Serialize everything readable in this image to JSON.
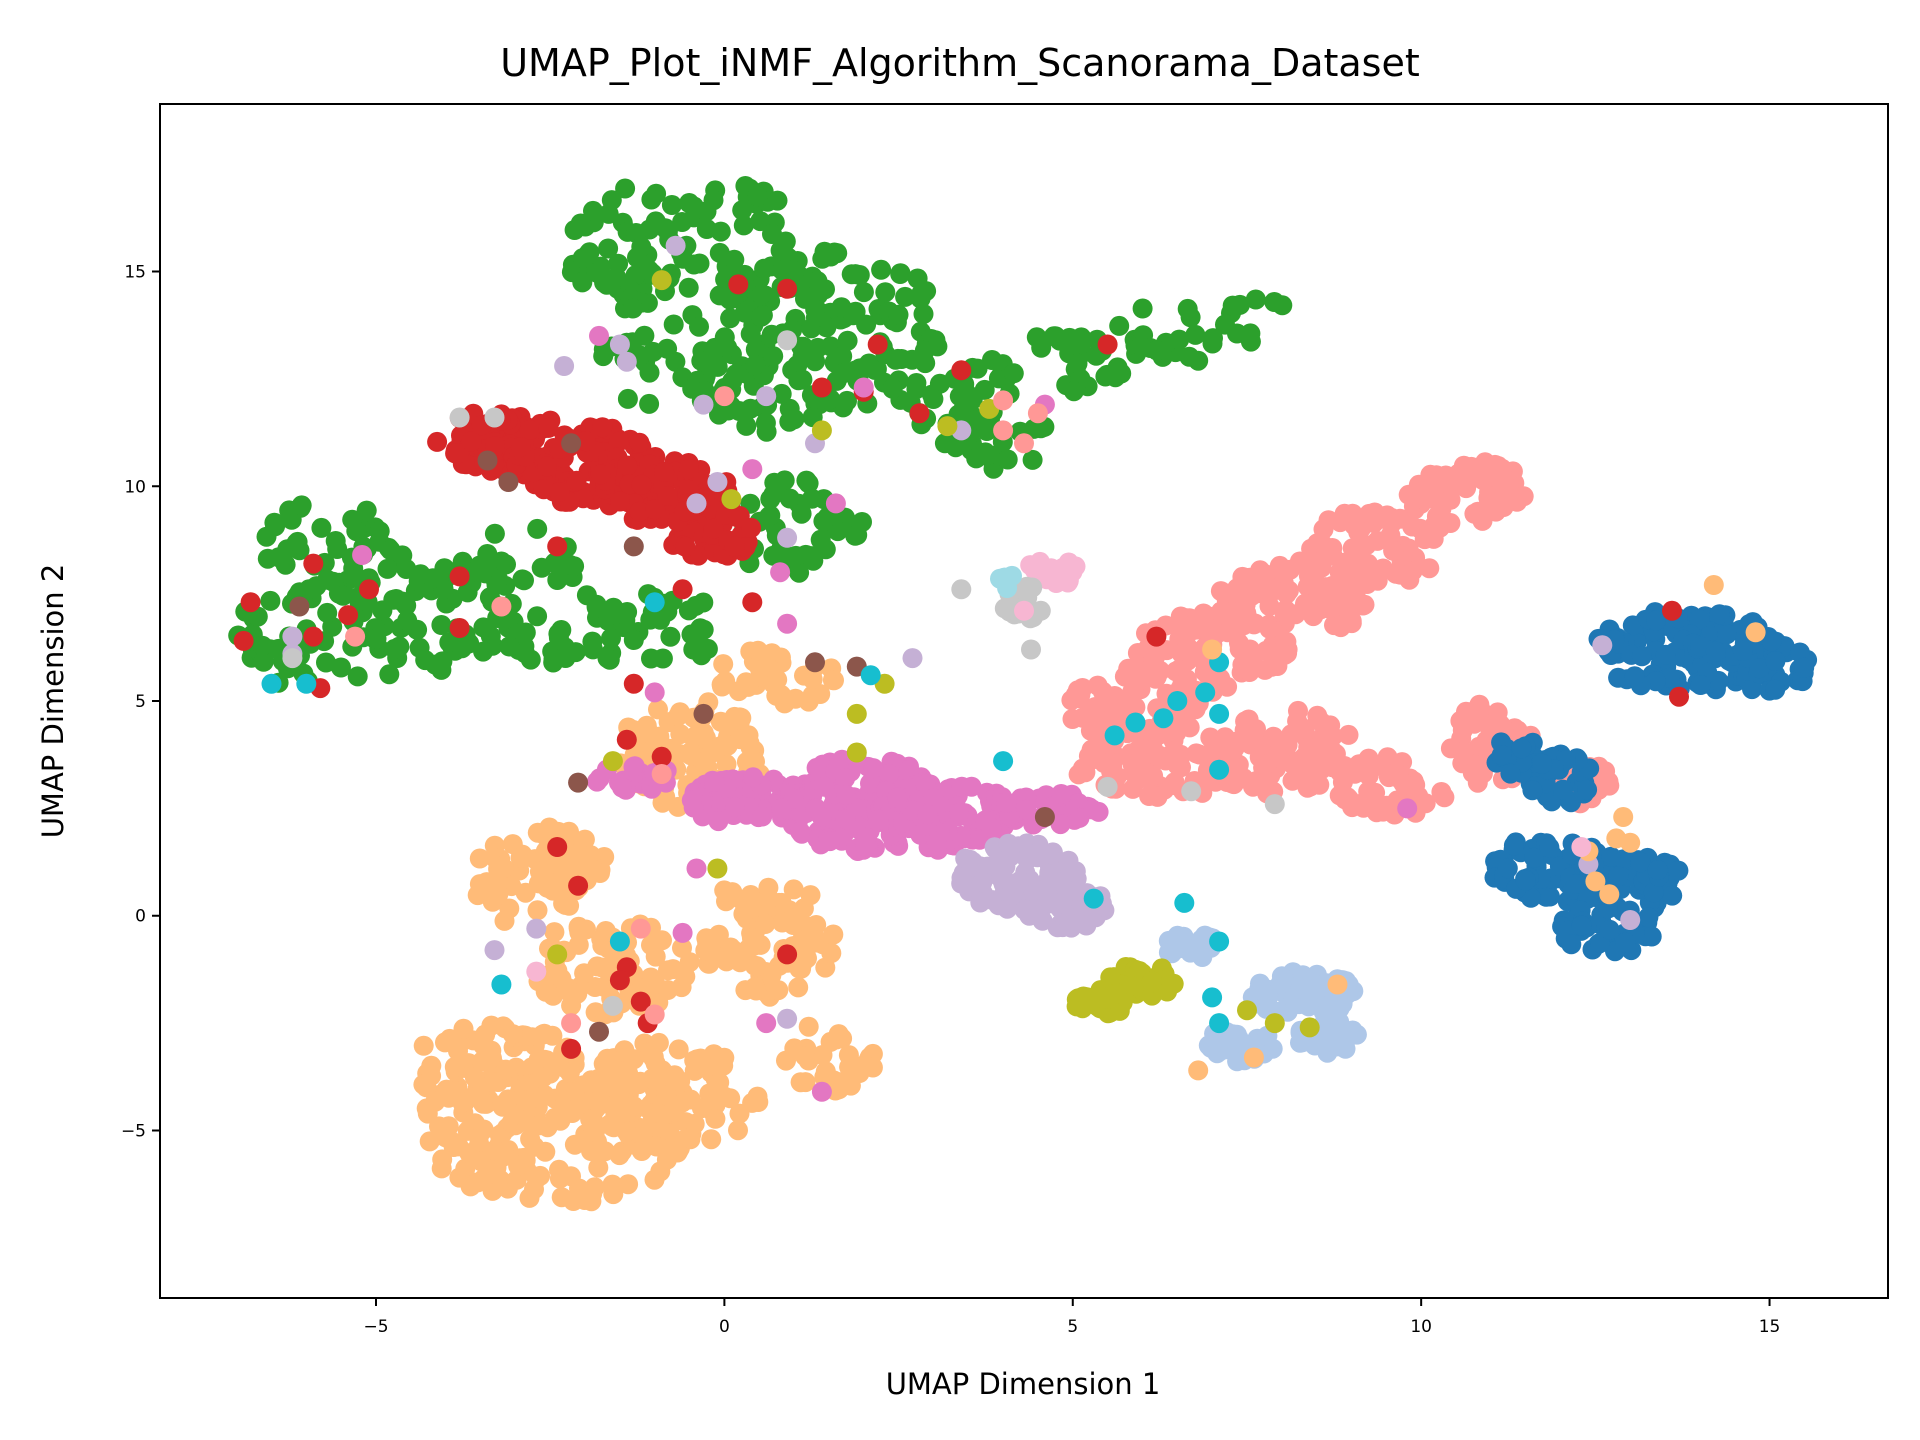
{
  "chart_data": {
    "type": "scatter",
    "title": "UMAP_Plot_iNMF_Algorithm_Scanorama_Dataset",
    "xlabel": "UMAP Dimension 1",
    "ylabel": "UMAP Dimension 2",
    "xlim": [
      -8.1,
      16.7
    ],
    "ylim": [
      -8.9,
      18.9
    ],
    "xticks": [
      -5,
      0,
      5,
      10,
      15
    ],
    "yticks": [
      -5,
      0,
      5,
      10,
      15
    ],
    "xtick_labels": [
      "−5",
      "0",
      "5",
      "10",
      "15"
    ],
    "ytick_labels": [
      "−5",
      "0",
      "5",
      "10",
      "15"
    ],
    "grid": false,
    "legend": false,
    "clusters": [
      {
        "color": "#2ca02c",
        "blobs": [
          [
            -0.5,
            15.5,
            1.8,
            1.7
          ],
          [
            1.5,
            14,
            1.6,
            1.6
          ],
          [
            -0.8,
            12.8,
            1.1,
            1.0
          ],
          [
            0.8,
            12.2,
            1.2,
            1.1
          ],
          [
            3.0,
            12.5,
            1.2,
            1.0
          ],
          [
            3.8,
            11.3,
            1.0,
            0.9
          ],
          [
            5.0,
            12.9,
            1.0,
            0.7
          ],
          [
            6.6,
            13.6,
            1.1,
            0.7
          ],
          [
            7.6,
            14.3,
            0.5,
            0.3
          ],
          [
            1.0,
            9.0,
            1.0,
            1.2
          ],
          [
            -5.6,
            8.6,
            1.0,
            1.1
          ],
          [
            -5.7,
            6.6,
            1.3,
            1.4
          ],
          [
            -4.2,
            7.1,
            1.2,
            1.4
          ],
          [
            -3.0,
            8.2,
            0.9,
            0.9
          ],
          [
            -2.2,
            6.7,
            1.1,
            0.9
          ],
          [
            -0.8,
            6.8,
            0.9,
            0.9
          ]
        ],
        "n": 700
      },
      {
        "color": "#d62728",
        "blobs": [
          [
            -3.2,
            11.0,
            1.0,
            0.8
          ],
          [
            -2.0,
            10.5,
            1.1,
            0.9
          ],
          [
            -0.9,
            9.9,
            1.0,
            0.8
          ],
          [
            -0.2,
            9.0,
            0.6,
            0.8
          ]
        ],
        "n": 340
      },
      {
        "color": "#ffbb78",
        "blobs": [
          [
            -2.4,
            -5.0,
            2.0,
            1.7
          ],
          [
            -3.3,
            -3.5,
            1.2,
            1.0
          ],
          [
            -0.8,
            -4.2,
            1.3,
            1.3
          ],
          [
            -2.6,
            0.8,
            1.0,
            1.3
          ],
          [
            -1.6,
            -1.2,
            1.2,
            1.1
          ],
          [
            -0.5,
            3.7,
            1.1,
            1.4
          ],
          [
            0.7,
            5.5,
            0.9,
            0.7
          ],
          [
            0.6,
            -0.5,
            1.0,
            1.4
          ],
          [
            1.5,
            -3.3,
            0.7,
            0.8
          ]
        ],
        "n": 750
      },
      {
        "color": "#e377c2",
        "blobs": [
          [
            1.9,
            2.6,
            1.3,
            1.1
          ],
          [
            3.2,
            2.3,
            1.0,
            0.8
          ],
          [
            0.3,
            2.7,
            0.8,
            0.6
          ],
          [
            -1.3,
            3.2,
            0.6,
            0.3
          ],
          [
            4.6,
            2.5,
            0.8,
            0.4
          ]
        ],
        "n": 360
      },
      {
        "color": "#c5b0d5",
        "blobs": [
          [
            4.2,
            0.9,
            0.9,
            0.8
          ],
          [
            4.9,
            0.2,
            0.6,
            0.5
          ]
        ],
        "n": 140
      },
      {
        "color": "#ff9896",
        "blobs": [
          [
            10.7,
            9.8,
            0.9,
            0.8
          ],
          [
            9.4,
            8.6,
            1.0,
            0.9
          ],
          [
            8.2,
            7.4,
            1.1,
            0.9
          ],
          [
            7.0,
            6.2,
            1.1,
            1.0
          ],
          [
            5.9,
            4.9,
            1.0,
            0.9
          ],
          [
            6.2,
            3.5,
            1.2,
            0.8
          ],
          [
            8.0,
            3.8,
            1.1,
            1.0
          ],
          [
            9.5,
            3.0,
            0.9,
            0.7
          ],
          [
            11.0,
            4.0,
            0.6,
            1.0
          ],
          [
            12.2,
            3.1,
            0.8,
            0.5
          ]
        ],
        "n": 640
      },
      {
        "color": "#1f77b4",
        "blobs": [
          [
            13.8,
            6.2,
            1.3,
            1.0
          ],
          [
            15.0,
            5.8,
            0.6,
            0.6
          ],
          [
            12.0,
            3.2,
            0.5,
            0.6
          ],
          [
            12.0,
            1.1,
            1.0,
            0.8
          ],
          [
            13.0,
            0.8,
            0.8,
            0.7
          ],
          [
            12.7,
            -0.3,
            0.7,
            0.6
          ],
          [
            11.5,
            3.7,
            0.5,
            0.5
          ]
        ],
        "n": 380
      },
      {
        "color": "#aec7e8",
        "blobs": [
          [
            8.3,
            -1.8,
            0.8,
            0.5
          ],
          [
            7.4,
            -3.0,
            0.5,
            0.4
          ],
          [
            8.6,
            -2.8,
            0.5,
            0.4
          ],
          [
            6.7,
            -0.7,
            0.4,
            0.3
          ]
        ],
        "n": 150
      },
      {
        "color": "#bcbd22",
        "blobs": [
          [
            6.0,
            -1.5,
            0.5,
            0.4
          ],
          [
            5.4,
            -2.0,
            0.4,
            0.3
          ]
        ],
        "n": 70
      },
      {
        "color": "#f7b6d2",
        "blobs": [
          [
            4.7,
            8.0,
            0.4,
            0.3
          ]
        ],
        "n": 22
      },
      {
        "color": "#c7c7c7",
        "blobs": [
          [
            4.3,
            7.2,
            0.3,
            0.5
          ]
        ],
        "n": 18
      },
      {
        "color": "#9edae5",
        "blobs": [
          [
            4.1,
            7.8,
            0.2,
            0.2
          ]
        ],
        "n": 6
      }
    ],
    "outliers": [
      {
        "color": "#d62728",
        "points": [
          [
            0.2,
            14.7
          ],
          [
            0.9,
            14.6
          ],
          [
            2.2,
            13.3
          ],
          [
            5.5,
            13.3
          ],
          [
            3.4,
            12.7
          ],
          [
            2.0,
            12.2
          ],
          [
            2.8,
            11.7
          ],
          [
            1.4,
            12.3
          ],
          [
            -6.9,
            6.4
          ],
          [
            -6.8,
            7.3
          ],
          [
            -5.9,
            8.2
          ],
          [
            -5.9,
            6.5
          ],
          [
            -5.8,
            5.3
          ],
          [
            -5.4,
            7.0
          ],
          [
            -5.1,
            7.6
          ],
          [
            -3.8,
            7.9
          ],
          [
            -3.8,
            6.7
          ],
          [
            -2.4,
            8.6
          ],
          [
            -1.3,
            5.4
          ],
          [
            -1.4,
            4.1
          ],
          [
            -0.9,
            3.7
          ],
          [
            -2.4,
            1.6
          ],
          [
            -2.1,
            0.7
          ],
          [
            -1.4,
            -1.2
          ],
          [
            -1.5,
            -1.5
          ],
          [
            -1.2,
            -2.0
          ],
          [
            -1.1,
            -2.5
          ],
          [
            -2.2,
            -3.1
          ],
          [
            0.9,
            -0.9
          ],
          [
            6.2,
            6.5
          ],
          [
            13.6,
            7.1
          ],
          [
            13.7,
            5.1
          ],
          [
            -0.6,
            7.6
          ],
          [
            0.4,
            7.3
          ]
        ]
      },
      {
        "color": "#8c564b",
        "points": [
          [
            -3.4,
            10.6
          ],
          [
            -3.1,
            10.1
          ],
          [
            -2.2,
            11.0
          ],
          [
            -1.3,
            8.6
          ],
          [
            -6.1,
            7.2
          ],
          [
            -1.8,
            -2.7
          ],
          [
            1.3,
            5.9
          ],
          [
            1.9,
            5.8
          ],
          [
            4.6,
            2.3
          ],
          [
            -2.1,
            3.1
          ],
          [
            -0.3,
            4.7
          ]
        ]
      },
      {
        "color": "#e377c2",
        "points": [
          [
            -1.8,
            13.5
          ],
          [
            2.0,
            12.3
          ],
          [
            4.6,
            11.9
          ],
          [
            0.4,
            10.4
          ],
          [
            -5.2,
            8.4
          ],
          [
            0.8,
            8.0
          ],
          [
            1.6,
            9.6
          ],
          [
            -0.6,
            -0.4
          ],
          [
            1.4,
            -4.1
          ],
          [
            0.6,
            -2.5
          ],
          [
            -0.4,
            1.1
          ],
          [
            9.8,
            2.5
          ],
          [
            0.9,
            6.8
          ],
          [
            -1.0,
            5.2
          ]
        ]
      },
      {
        "color": "#c5b0d5",
        "points": [
          [
            -0.7,
            15.6
          ],
          [
            -1.5,
            13.3
          ],
          [
            -1.4,
            12.9
          ],
          [
            -2.3,
            12.8
          ],
          [
            -0.3,
            11.9
          ],
          [
            0.6,
            12.1
          ],
          [
            1.3,
            11.0
          ],
          [
            3.4,
            11.3
          ],
          [
            -0.1,
            10.1
          ],
          [
            -0.4,
            9.6
          ],
          [
            0.9,
            8.8
          ],
          [
            -6.2,
            6.5
          ],
          [
            -6.2,
            6.1
          ],
          [
            -2.7,
            -0.3
          ],
          [
            -3.3,
            -0.8
          ],
          [
            2.7,
            6.0
          ],
          [
            12.6,
            6.3
          ],
          [
            12.4,
            1.2
          ],
          [
            13.0,
            -0.1
          ],
          [
            0.9,
            -2.4
          ]
        ]
      },
      {
        "color": "#bcbd22",
        "points": [
          [
            -0.9,
            14.8
          ],
          [
            1.4,
            11.3
          ],
          [
            3.2,
            11.4
          ],
          [
            3.8,
            11.8
          ],
          [
            0.1,
            9.7
          ],
          [
            -1.6,
            3.6
          ],
          [
            1.9,
            4.7
          ],
          [
            1.9,
            3.8
          ],
          [
            -0.1,
            1.1
          ],
          [
            -2.4,
            -0.9
          ],
          [
            2.3,
            5.4
          ],
          [
            8.4,
            -2.6
          ],
          [
            7.9,
            -2.5
          ],
          [
            7.5,
            -2.2
          ]
        ]
      },
      {
        "color": "#17becf",
        "points": [
          [
            -6.5,
            5.4
          ],
          [
            -6.0,
            5.4
          ],
          [
            -1.0,
            7.3
          ],
          [
            -1.5,
            -0.6
          ],
          [
            -3.2,
            -1.6
          ],
          [
            2.1,
            5.6
          ],
          [
            5.6,
            4.2
          ],
          [
            5.9,
            4.5
          ],
          [
            6.3,
            4.6
          ],
          [
            6.5,
            5.0
          ],
          [
            6.9,
            5.2
          ],
          [
            7.1,
            4.7
          ],
          [
            7.1,
            5.9
          ],
          [
            7.1,
            3.4
          ],
          [
            5.3,
            0.4
          ],
          [
            6.6,
            0.3
          ],
          [
            7.0,
            -1.9
          ],
          [
            7.1,
            -2.5
          ],
          [
            7.1,
            -0.6
          ],
          [
            4.0,
            3.6
          ]
        ]
      },
      {
        "color": "#ff9896",
        "points": [
          [
            0.0,
            12.1
          ],
          [
            4.0,
            12.0
          ],
          [
            4.5,
            11.7
          ],
          [
            -5.3,
            6.5
          ],
          [
            -3.2,
            7.2
          ],
          [
            -0.9,
            3.3
          ],
          [
            -1.2,
            -0.3
          ],
          [
            -2.2,
            -2.5
          ],
          [
            -1.0,
            -2.3
          ],
          [
            4.3,
            11.0
          ],
          [
            4.0,
            11.3
          ]
        ]
      },
      {
        "color": "#ffbb78",
        "points": [
          [
            14.2,
            7.7
          ],
          [
            14.8,
            6.6
          ],
          [
            12.5,
            0.8
          ],
          [
            12.9,
            2.3
          ],
          [
            12.8,
            1.8
          ],
          [
            12.4,
            1.5
          ],
          [
            13.0,
            1.7
          ],
          [
            12.7,
            0.5
          ],
          [
            8.8,
            -1.6
          ],
          [
            6.8,
            -3.6
          ],
          [
            7.6,
            -3.3
          ],
          [
            7.0,
            6.2
          ]
        ]
      },
      {
        "color": "#c7c7c7",
        "points": [
          [
            -3.8,
            11.6
          ],
          [
            -3.3,
            11.6
          ],
          [
            0.9,
            13.4
          ],
          [
            3.4,
            7.6
          ],
          [
            4.4,
            6.2
          ],
          [
            5.5,
            3.0
          ],
          [
            6.7,
            2.9
          ],
          [
            7.9,
            2.6
          ],
          [
            -1.6,
            -2.1
          ],
          [
            -6.2,
            6.0
          ]
        ]
      },
      {
        "color": "#f7b6d2",
        "points": [
          [
            -2.7,
            -1.3
          ],
          [
            12.3,
            1.6
          ],
          [
            4.3,
            7.1
          ]
        ]
      }
    ]
  }
}
